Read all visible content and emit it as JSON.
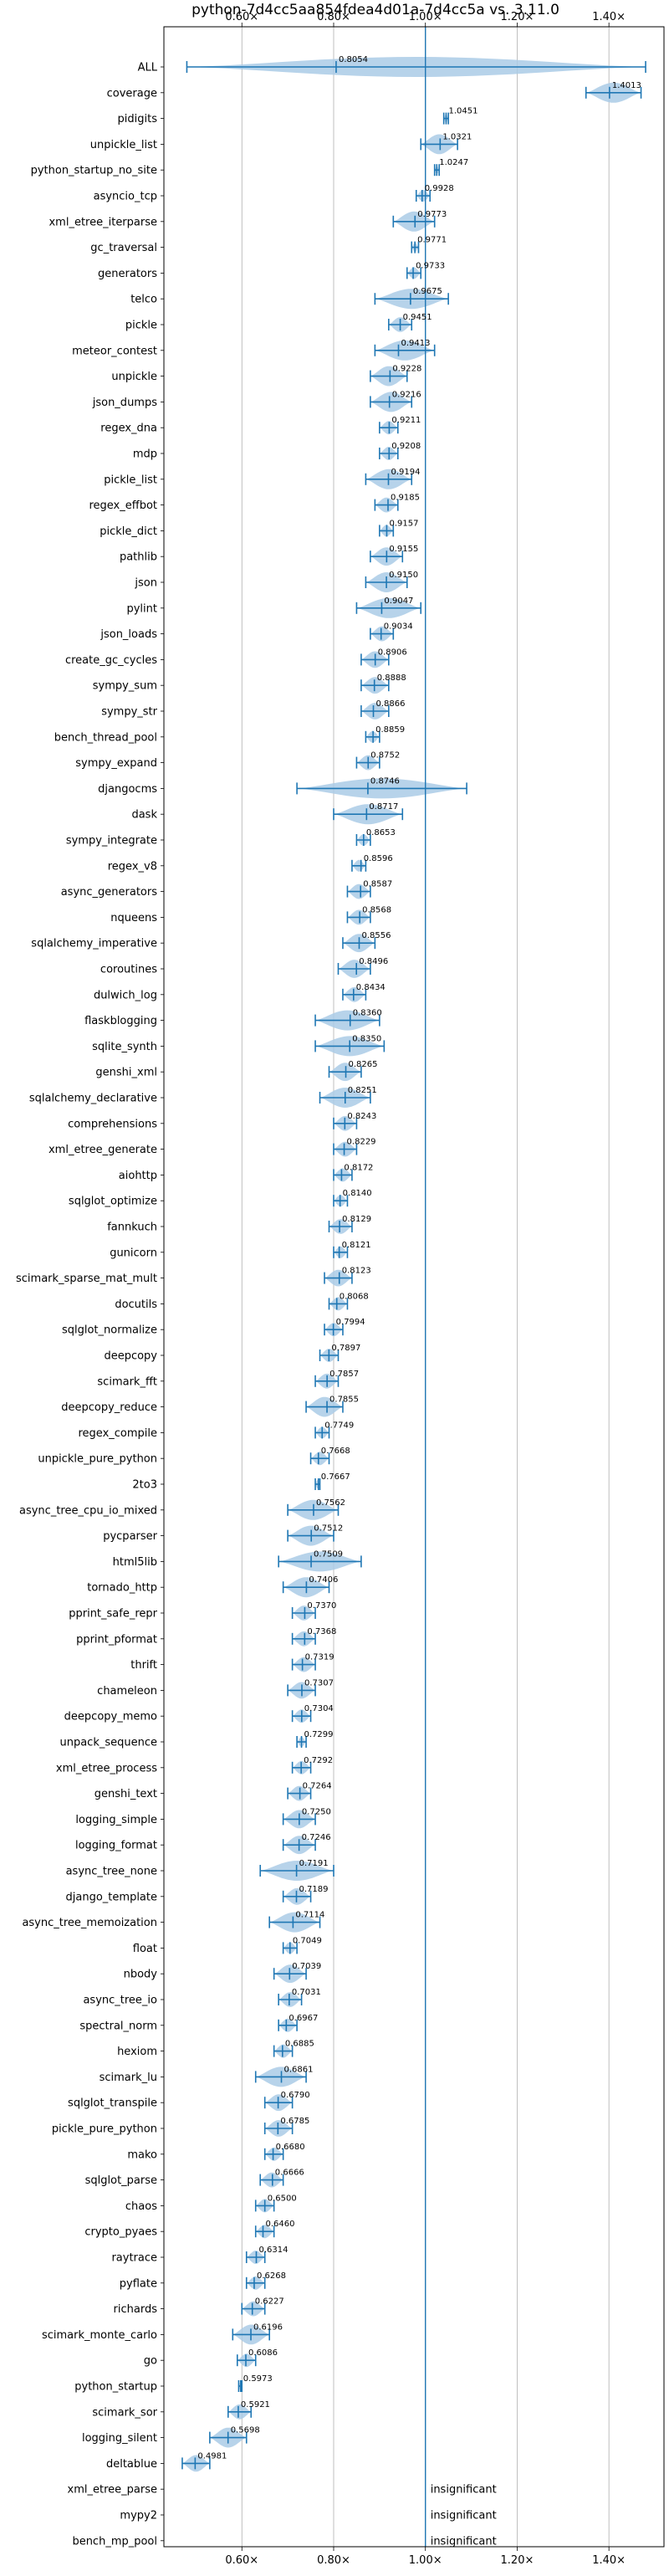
{
  "chart_data": {
    "type": "violin",
    "title": "python-7d4cc5aa854fdea4d01a-7d4cc5a vs. 3.11.0",
    "xlabel": "",
    "ylabel": "",
    "xlim": [
      0.43,
      1.52
    ],
    "x_ticks": [
      {
        "value": 0.6,
        "label": "0.60×"
      },
      {
        "value": 0.8,
        "label": "0.80×"
      },
      {
        "value": 1.0,
        "label": "1.00×"
      },
      {
        "value": 1.2,
        "label": "1.20×"
      },
      {
        "value": 1.4,
        "label": "1.40×"
      }
    ],
    "reference_line": 1.0,
    "grid": true,
    "position": "top-and-bottom",
    "series_color": "#1f77b4",
    "violin_color": "#aacbe6",
    "categories": [
      {
        "name": "ALL",
        "value": 0.8054,
        "label": "0.8054",
        "lo": 0.48,
        "hi": 1.48
      },
      {
        "name": "coverage",
        "value": 1.4013,
        "label": "1.4013",
        "lo": 1.35,
        "hi": 1.47
      },
      {
        "name": "pidigits",
        "value": 1.0451,
        "label": "1.0451",
        "lo": 1.04,
        "hi": 1.05
      },
      {
        "name": "unpickle_list",
        "value": 1.0321,
        "label": "1.0321",
        "lo": 0.99,
        "hi": 1.07
      },
      {
        "name": "python_startup_no_site",
        "value": 1.0247,
        "label": "1.0247",
        "lo": 1.02,
        "hi": 1.03
      },
      {
        "name": "asyncio_tcp",
        "value": 0.9928,
        "label": "0.9928",
        "lo": 0.98,
        "hi": 1.01
      },
      {
        "name": "xml_etree_iterparse",
        "value": 0.9773,
        "label": "0.9773",
        "lo": 0.93,
        "hi": 1.02
      },
      {
        "name": "gc_traversal",
        "value": 0.9771,
        "label": "0.9771",
        "lo": 0.97,
        "hi": 0.985
      },
      {
        "name": "generators",
        "value": 0.9733,
        "label": "0.9733",
        "lo": 0.96,
        "hi": 0.99
      },
      {
        "name": "telco",
        "value": 0.9675,
        "label": "0.9675",
        "lo": 0.89,
        "hi": 1.05
      },
      {
        "name": "pickle",
        "value": 0.9451,
        "label": "0.9451",
        "lo": 0.92,
        "hi": 0.97
      },
      {
        "name": "meteor_contest",
        "value": 0.9413,
        "label": "0.9413",
        "lo": 0.89,
        "hi": 1.02
      },
      {
        "name": "unpickle",
        "value": 0.9228,
        "label": "0.9228",
        "lo": 0.88,
        "hi": 0.96
      },
      {
        "name": "json_dumps",
        "value": 0.9216,
        "label": "0.9216",
        "lo": 0.88,
        "hi": 0.97
      },
      {
        "name": "regex_dna",
        "value": 0.9211,
        "label": "0.9211",
        "lo": 0.9,
        "hi": 0.94
      },
      {
        "name": "mdp",
        "value": 0.9208,
        "label": "0.9208",
        "lo": 0.9,
        "hi": 0.94
      },
      {
        "name": "pickle_list",
        "value": 0.9194,
        "label": "0.9194",
        "lo": 0.87,
        "hi": 0.97
      },
      {
        "name": "regex_effbot",
        "value": 0.9185,
        "label": "0.9185",
        "lo": 0.89,
        "hi": 0.94
      },
      {
        "name": "pickle_dict",
        "value": 0.9157,
        "label": "0.9157",
        "lo": 0.9,
        "hi": 0.93
      },
      {
        "name": "pathlib",
        "value": 0.9155,
        "label": "0.9155",
        "lo": 0.88,
        "hi": 0.95
      },
      {
        "name": "json",
        "value": 0.915,
        "label": "0.9150",
        "lo": 0.87,
        "hi": 0.96
      },
      {
        "name": "pylint",
        "value": 0.9047,
        "label": "0.9047",
        "lo": 0.85,
        "hi": 0.99
      },
      {
        "name": "json_loads",
        "value": 0.9034,
        "label": "0.9034",
        "lo": 0.88,
        "hi": 0.93
      },
      {
        "name": "create_gc_cycles",
        "value": 0.8906,
        "label": "0.8906",
        "lo": 0.86,
        "hi": 0.92
      },
      {
        "name": "sympy_sum",
        "value": 0.8888,
        "label": "0.8888",
        "lo": 0.86,
        "hi": 0.92
      },
      {
        "name": "sympy_str",
        "value": 0.8866,
        "label": "0.8866",
        "lo": 0.86,
        "hi": 0.92
      },
      {
        "name": "bench_thread_pool",
        "value": 0.8859,
        "label": "0.8859",
        "lo": 0.87,
        "hi": 0.9
      },
      {
        "name": "sympy_expand",
        "value": 0.8752,
        "label": "0.8752",
        "lo": 0.85,
        "hi": 0.9
      },
      {
        "name": "djangocms",
        "value": 0.8746,
        "label": "0.8746",
        "lo": 0.72,
        "hi": 1.09
      },
      {
        "name": "dask",
        "value": 0.8717,
        "label": "0.8717",
        "lo": 0.8,
        "hi": 0.95
      },
      {
        "name": "sympy_integrate",
        "value": 0.8653,
        "label": "0.8653",
        "lo": 0.85,
        "hi": 0.88
      },
      {
        "name": "regex_v8",
        "value": 0.8596,
        "label": "0.8596",
        "lo": 0.84,
        "hi": 0.87
      },
      {
        "name": "async_generators",
        "value": 0.8587,
        "label": "0.8587",
        "lo": 0.83,
        "hi": 0.88
      },
      {
        "name": "nqueens",
        "value": 0.8568,
        "label": "0.8568",
        "lo": 0.83,
        "hi": 0.88
      },
      {
        "name": "sqlalchemy_imperative",
        "value": 0.8556,
        "label": "0.8556",
        "lo": 0.82,
        "hi": 0.89
      },
      {
        "name": "coroutines",
        "value": 0.8496,
        "label": "0.8496",
        "lo": 0.81,
        "hi": 0.88
      },
      {
        "name": "dulwich_log",
        "value": 0.8434,
        "label": "0.8434",
        "lo": 0.82,
        "hi": 0.87
      },
      {
        "name": "flaskblogging",
        "value": 0.836,
        "label": "0.8360",
        "lo": 0.76,
        "hi": 0.9
      },
      {
        "name": "sqlite_synth",
        "value": 0.835,
        "label": "0.8350",
        "lo": 0.76,
        "hi": 0.91
      },
      {
        "name": "genshi_xml",
        "value": 0.8265,
        "label": "0.8265",
        "lo": 0.79,
        "hi": 0.86
      },
      {
        "name": "sqlalchemy_declarative",
        "value": 0.8251,
        "label": "0.8251",
        "lo": 0.77,
        "hi": 0.88
      },
      {
        "name": "comprehensions",
        "value": 0.8243,
        "label": "0.8243",
        "lo": 0.8,
        "hi": 0.85
      },
      {
        "name": "xml_etree_generate",
        "value": 0.8229,
        "label": "0.8229",
        "lo": 0.8,
        "hi": 0.85
      },
      {
        "name": "aiohttp",
        "value": 0.8172,
        "label": "0.8172",
        "lo": 0.8,
        "hi": 0.84
      },
      {
        "name": "sqlglot_optimize",
        "value": 0.814,
        "label": "0.8140",
        "lo": 0.8,
        "hi": 0.83
      },
      {
        "name": "fannkuch",
        "value": 0.8129,
        "label": "0.8129",
        "lo": 0.79,
        "hi": 0.84
      },
      {
        "name": "gunicorn",
        "value": 0.8121,
        "label": "0.8121",
        "lo": 0.8,
        "hi": 0.83
      },
      {
        "name": "scimark_sparse_mat_mult",
        "value": 0.8123,
        "label": "0.8123",
        "lo": 0.78,
        "hi": 0.84
      },
      {
        "name": "docutils",
        "value": 0.8068,
        "label": "0.8068",
        "lo": 0.79,
        "hi": 0.83
      },
      {
        "name": "sqlglot_normalize",
        "value": 0.7994,
        "label": "0.7994",
        "lo": 0.78,
        "hi": 0.82
      },
      {
        "name": "deepcopy",
        "value": 0.7897,
        "label": "0.7897",
        "lo": 0.77,
        "hi": 0.81
      },
      {
        "name": "scimark_fft",
        "value": 0.7857,
        "label": "0.7857",
        "lo": 0.76,
        "hi": 0.81
      },
      {
        "name": "deepcopy_reduce",
        "value": 0.7855,
        "label": "0.7855",
        "lo": 0.74,
        "hi": 0.82
      },
      {
        "name": "regex_compile",
        "value": 0.7749,
        "label": "0.7749",
        "lo": 0.76,
        "hi": 0.79
      },
      {
        "name": "unpickle_pure_python",
        "value": 0.7668,
        "label": "0.7668",
        "lo": 0.75,
        "hi": 0.79
      },
      {
        "name": "2to3",
        "value": 0.7667,
        "label": "0.7667",
        "lo": 0.76,
        "hi": 0.77
      },
      {
        "name": "async_tree_cpu_io_mixed",
        "value": 0.7562,
        "label": "0.7562",
        "lo": 0.7,
        "hi": 0.81
      },
      {
        "name": "pycparser",
        "value": 0.7512,
        "label": "0.7512",
        "lo": 0.7,
        "hi": 0.8
      },
      {
        "name": "html5lib",
        "value": 0.7509,
        "label": "0.7509",
        "lo": 0.68,
        "hi": 0.86
      },
      {
        "name": "tornado_http",
        "value": 0.7406,
        "label": "0.7406",
        "lo": 0.69,
        "hi": 0.79
      },
      {
        "name": "pprint_safe_repr",
        "value": 0.737,
        "label": "0.7370",
        "lo": 0.71,
        "hi": 0.76
      },
      {
        "name": "pprint_pformat",
        "value": 0.7368,
        "label": "0.7368",
        "lo": 0.71,
        "hi": 0.76
      },
      {
        "name": "thrift",
        "value": 0.7319,
        "label": "0.7319",
        "lo": 0.71,
        "hi": 0.76
      },
      {
        "name": "chameleon",
        "value": 0.7307,
        "label": "0.7307",
        "lo": 0.7,
        "hi": 0.76
      },
      {
        "name": "deepcopy_memo",
        "value": 0.7304,
        "label": "0.7304",
        "lo": 0.71,
        "hi": 0.75
      },
      {
        "name": "unpack_sequence",
        "value": 0.7299,
        "label": "0.7299",
        "lo": 0.72,
        "hi": 0.74
      },
      {
        "name": "xml_etree_process",
        "value": 0.7292,
        "label": "0.7292",
        "lo": 0.71,
        "hi": 0.75
      },
      {
        "name": "genshi_text",
        "value": 0.7264,
        "label": "0.7264",
        "lo": 0.7,
        "hi": 0.75
      },
      {
        "name": "logging_simple",
        "value": 0.725,
        "label": "0.7250",
        "lo": 0.69,
        "hi": 0.76
      },
      {
        "name": "logging_format",
        "value": 0.7246,
        "label": "0.7246",
        "lo": 0.69,
        "hi": 0.76
      },
      {
        "name": "async_tree_none",
        "value": 0.7191,
        "label": "0.7191",
        "lo": 0.64,
        "hi": 0.8
      },
      {
        "name": "django_template",
        "value": 0.7189,
        "label": "0.7189",
        "lo": 0.69,
        "hi": 0.75
      },
      {
        "name": "async_tree_memoization",
        "value": 0.7114,
        "label": "0.7114",
        "lo": 0.66,
        "hi": 0.77
      },
      {
        "name": "float",
        "value": 0.7049,
        "label": "0.7049",
        "lo": 0.69,
        "hi": 0.72
      },
      {
        "name": "nbody",
        "value": 0.7039,
        "label": "0.7039",
        "lo": 0.67,
        "hi": 0.74
      },
      {
        "name": "async_tree_io",
        "value": 0.7031,
        "label": "0.7031",
        "lo": 0.68,
        "hi": 0.73
      },
      {
        "name": "spectral_norm",
        "value": 0.6967,
        "label": "0.6967",
        "lo": 0.68,
        "hi": 0.72
      },
      {
        "name": "hexiom",
        "value": 0.6885,
        "label": "0.6885",
        "lo": 0.67,
        "hi": 0.71
      },
      {
        "name": "scimark_lu",
        "value": 0.6861,
        "label": "0.6861",
        "lo": 0.63,
        "hi": 0.74
      },
      {
        "name": "sqlglot_transpile",
        "value": 0.679,
        "label": "0.6790",
        "lo": 0.65,
        "hi": 0.71
      },
      {
        "name": "pickle_pure_python",
        "value": 0.6785,
        "label": "0.6785",
        "lo": 0.65,
        "hi": 0.71
      },
      {
        "name": "mako",
        "value": 0.668,
        "label": "0.6680",
        "lo": 0.65,
        "hi": 0.69
      },
      {
        "name": "sqlglot_parse",
        "value": 0.6666,
        "label": "0.6666",
        "lo": 0.64,
        "hi": 0.69
      },
      {
        "name": "chaos",
        "value": 0.65,
        "label": "0.6500",
        "lo": 0.63,
        "hi": 0.67
      },
      {
        "name": "crypto_pyaes",
        "value": 0.646,
        "label": "0.6460",
        "lo": 0.63,
        "hi": 0.67
      },
      {
        "name": "raytrace",
        "value": 0.6314,
        "label": "0.6314",
        "lo": 0.61,
        "hi": 0.65
      },
      {
        "name": "pyflate",
        "value": 0.6268,
        "label": "0.6268",
        "lo": 0.61,
        "hi": 0.65
      },
      {
        "name": "richards",
        "value": 0.6227,
        "label": "0.6227",
        "lo": 0.6,
        "hi": 0.65
      },
      {
        "name": "scimark_monte_carlo",
        "value": 0.6196,
        "label": "0.6196",
        "lo": 0.58,
        "hi": 0.66
      },
      {
        "name": "go",
        "value": 0.6086,
        "label": "0.6086",
        "lo": 0.59,
        "hi": 0.63
      },
      {
        "name": "python_startup",
        "value": 0.5973,
        "label": "0.5973",
        "lo": 0.593,
        "hi": 0.6
      },
      {
        "name": "scimark_sor",
        "value": 0.5921,
        "label": "0.5921",
        "lo": 0.57,
        "hi": 0.62
      },
      {
        "name": "logging_silent",
        "value": 0.5698,
        "label": "0.5698",
        "lo": 0.53,
        "hi": 0.61
      },
      {
        "name": "deltablue",
        "value": 0.4981,
        "label": "0.4981",
        "lo": 0.47,
        "hi": 0.53
      },
      {
        "name": "xml_etree_parse",
        "value": null,
        "label": "insignificant"
      },
      {
        "name": "mypy2",
        "value": null,
        "label": "insignificant"
      },
      {
        "name": "bench_mp_pool",
        "value": null,
        "label": "insignificant"
      }
    ]
  }
}
